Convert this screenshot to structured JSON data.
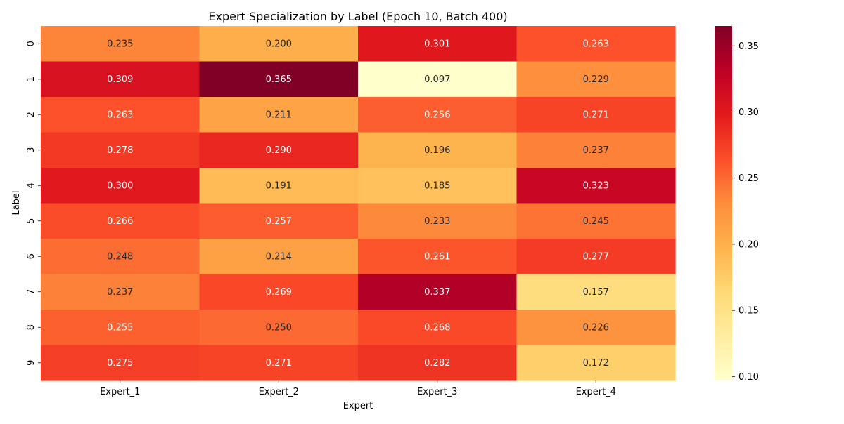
{
  "chart_data": {
    "type": "heatmap",
    "title": "Expert Specialization by Label (Epoch 10, Batch 400)",
    "xlabel": "Expert",
    "ylabel": "Label",
    "x_categories": [
      "Expert_1",
      "Expert_2",
      "Expert_3",
      "Expert_4"
    ],
    "y_categories": [
      "0",
      "1",
      "2",
      "3",
      "4",
      "5",
      "6",
      "7",
      "8",
      "9"
    ],
    "values": [
      [
        0.235,
        0.2,
        0.301,
        0.263
      ],
      [
        0.309,
        0.365,
        0.097,
        0.229
      ],
      [
        0.263,
        0.211,
        0.256,
        0.271
      ],
      [
        0.278,
        0.29,
        0.196,
        0.237
      ],
      [
        0.3,
        0.191,
        0.185,
        0.323
      ],
      [
        0.266,
        0.257,
        0.233,
        0.245
      ],
      [
        0.248,
        0.214,
        0.261,
        0.277
      ],
      [
        0.237,
        0.269,
        0.337,
        0.157
      ],
      [
        0.255,
        0.25,
        0.268,
        0.226
      ],
      [
        0.275,
        0.271,
        0.282,
        0.172
      ]
    ],
    "value_format": "0.000",
    "colormap": "YlOrRd",
    "color_range": [
      0.097,
      0.365
    ],
    "colorbar_ticks": [
      "0.10",
      "0.15",
      "0.20",
      "0.25",
      "0.30",
      "0.35"
    ],
    "grid": false
  }
}
